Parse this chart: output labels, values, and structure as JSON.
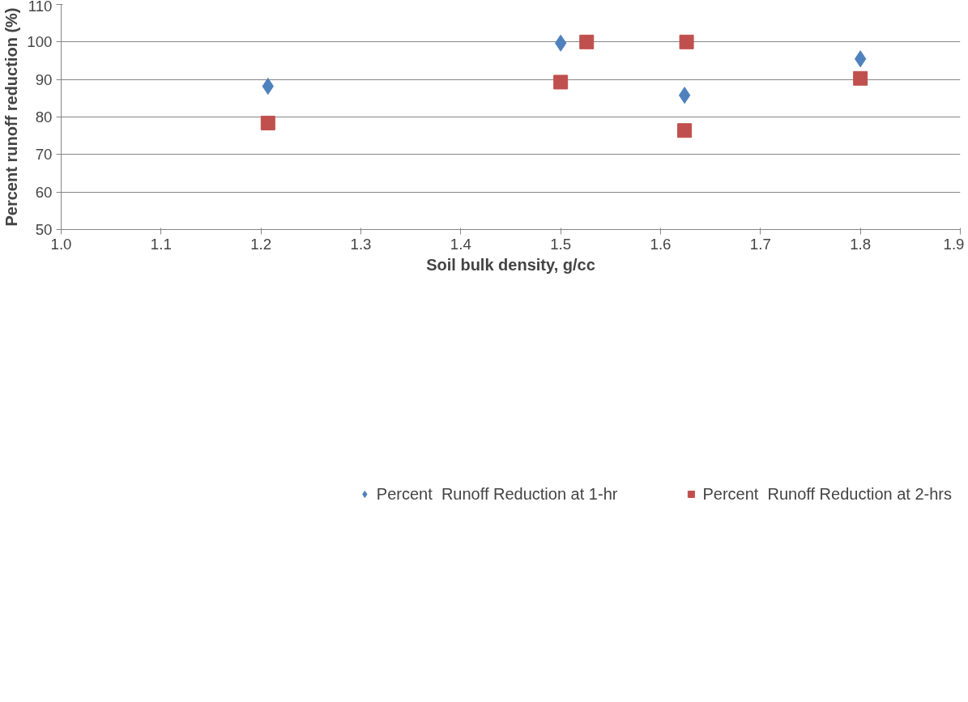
{
  "chart_data": {
    "type": "scatter",
    "xlabel": "Soil bulk density, g/cc",
    "ylabel": "Percent runoff reduction (%)",
    "xlim": [
      1.0,
      1.9
    ],
    "xticks": [
      {
        "value": 1.0,
        "label": "1.0"
      },
      1.1,
      1.2,
      1.3,
      1.4,
      1.5,
      1.6,
      1.7,
      1.8,
      1.9
    ],
    "ylim": [
      50,
      110
    ],
    "yticks": [
      50,
      60,
      70,
      80,
      90,
      100,
      110
    ],
    "grid": "y",
    "legend": "bottom",
    "series": [
      {
        "name": "Percent  Runoff Reduction at 1-hr",
        "color": "#4f81bd",
        "marker": "diamond",
        "x": [
          1.207,
          1.5,
          1.624,
          1.8
        ],
        "values": [
          88.2,
          99.7,
          85.8,
          95.5
        ]
      },
      {
        "name": "Percent  Runoff Reduction at 2-hrs",
        "color": "#c0504d",
        "marker": "square",
        "x": [
          1.207,
          1.5,
          1.526,
          1.626,
          1.624,
          1.8
        ],
        "values": [
          78.4,
          89.3,
          100,
          100,
          76.4,
          90.3
        ]
      }
    ]
  }
}
